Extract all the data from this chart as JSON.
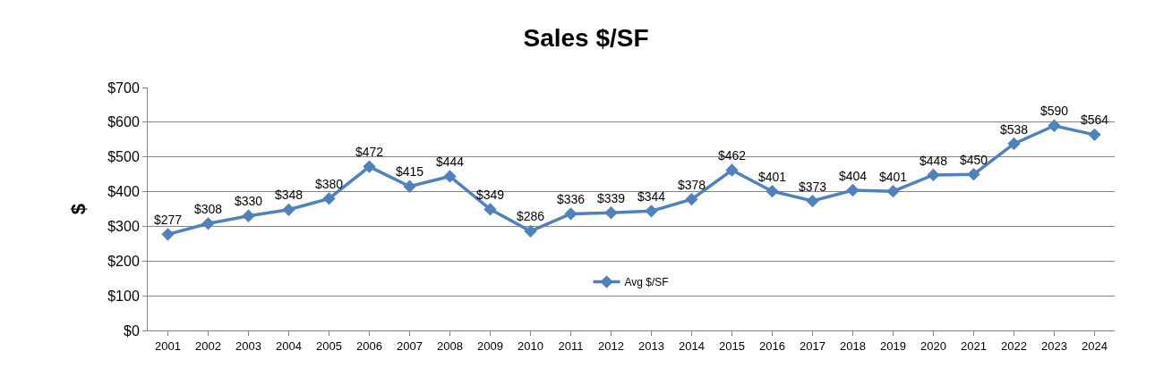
{
  "chart_data": {
    "type": "line",
    "title": "Sales $/SF",
    "ylabel": "$",
    "categories": [
      "2001",
      "2002",
      "2003",
      "2004",
      "2005",
      "2006",
      "2007",
      "2008",
      "2009",
      "2010",
      "2011",
      "2012",
      "2013",
      "2014",
      "2015",
      "2016",
      "2017",
      "2018",
      "2019",
      "2020",
      "2021",
      "2022",
      "2023",
      "2024"
    ],
    "series": [
      {
        "name": "Avg $/SF",
        "color": "#4f81bd",
        "values": [
          277,
          308,
          330,
          348,
          380,
          472,
          415,
          444,
          349,
          286,
          336,
          339,
          344,
          378,
          462,
          401,
          373,
          404,
          401,
          448,
          450,
          538,
          590,
          564
        ],
        "value_labels": [
          "$277",
          "$308",
          "$330",
          "$348",
          "$380",
          "$472",
          "$415",
          "$444",
          "$349",
          "$286",
          "$336",
          "$339",
          "$344",
          "$378",
          "$462",
          "$401",
          "$373",
          "$404",
          "$401",
          "$448",
          "$450",
          "$538",
          "$590",
          "$564"
        ]
      }
    ],
    "ylim": [
      0,
      700
    ],
    "yticks": [
      {
        "value": 0,
        "label": "$0"
      },
      {
        "value": 100,
        "label": "$100"
      },
      {
        "value": 200,
        "label": "$200"
      },
      {
        "value": 300,
        "label": "$300"
      },
      {
        "value": 400,
        "label": "$400"
      },
      {
        "value": 500,
        "label": "$500"
      },
      {
        "value": 600,
        "label": "$600"
      },
      {
        "value": 700,
        "label": "$700"
      }
    ],
    "grid": "y",
    "legend": "bottom",
    "marker": "diamond",
    "line_style": "solid"
  }
}
